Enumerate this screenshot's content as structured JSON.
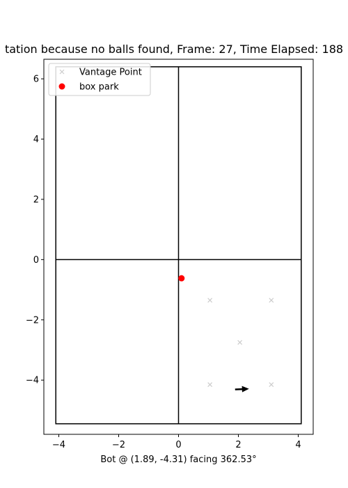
{
  "chart_data": {
    "type": "scatter",
    "title": "tation because no balls found, Frame: 27, Time Elapsed: 188",
    "xlabel": "Bot @ (1.89, -4.31) facing 362.53°",
    "ylabel": "",
    "xlim": [
      -4.5,
      4.5
    ],
    "ylim": [
      -5.8,
      6.65
    ],
    "x_ticks": [
      -4,
      -2,
      0,
      2,
      4
    ],
    "y_ticks": [
      -4,
      -2,
      0,
      2,
      4,
      6
    ],
    "grid": false,
    "legend_position": "top-left",
    "field": {
      "rect": {
        "x0": -4.1,
        "x1": 4.1,
        "y0": -5.45,
        "y1": 6.4
      },
      "lines": [
        {
          "x1": 0,
          "y1": -5.45,
          "x2": 0,
          "y2": 6.4
        },
        {
          "x1": -4.1,
          "y1": 0,
          "x2": 4.1,
          "y2": 0
        }
      ],
      "color": "#000000"
    },
    "series": [
      {
        "name": "Vantage Point",
        "marker": "x",
        "color": "#cccccc",
        "points": [
          {
            "x": 1.05,
            "y": -1.35
          },
          {
            "x": 3.1,
            "y": -1.35
          },
          {
            "x": 2.05,
            "y": -2.75
          },
          {
            "x": 1.05,
            "y": -4.15
          },
          {
            "x": 3.1,
            "y": -4.15
          }
        ]
      },
      {
        "name": "box park",
        "marker": "o",
        "color": "#ff0000",
        "points": [
          {
            "x": 0.1,
            "y": -0.62
          }
        ]
      }
    ],
    "bot": {
      "x": 1.89,
      "y": -4.31,
      "heading_deg": 362.53,
      "color": "#000000"
    }
  }
}
